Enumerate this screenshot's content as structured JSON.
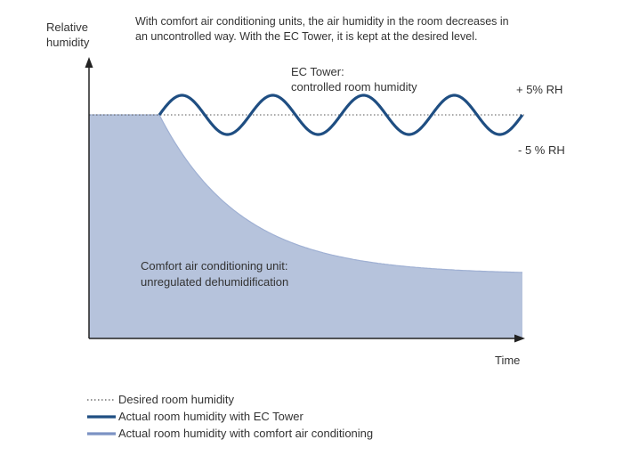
{
  "intro": {
    "line1": "With comfort air conditioning units, the air humidity in the room decreases in",
    "line2": "an uncontrolled way. With the EC Tower, it is kept at the desired level."
  },
  "axes": {
    "y_label_line1": "Relative",
    "y_label_line2": "humidity",
    "x_label": "Time"
  },
  "annotations": {
    "ec_tower_line1": "EC Tower:",
    "ec_tower_line2": "controlled room humidity",
    "plus_band": "+ 5% RH",
    "minus_band": "- 5 % RH",
    "comfort_line1": "Comfort air conditioning unit:",
    "comfort_line2": "unregulated dehumidification"
  },
  "legend": [
    {
      "label": "Desired room humidity",
      "style": "dotted",
      "color": "#555555"
    },
    {
      "label": "Actual room humidity with EC Tower",
      "style": "solid",
      "color": "#1f4e82"
    },
    {
      "label": "Actual room humidity with comfort air conditioning",
      "style": "solid",
      "color": "#7b92c3"
    }
  ],
  "colors": {
    "ec_tower_line": "#1f4e82",
    "comfort_fill": "#b6c3dc",
    "comfort_line": "#7b92c3",
    "axis": "#222222"
  }
}
